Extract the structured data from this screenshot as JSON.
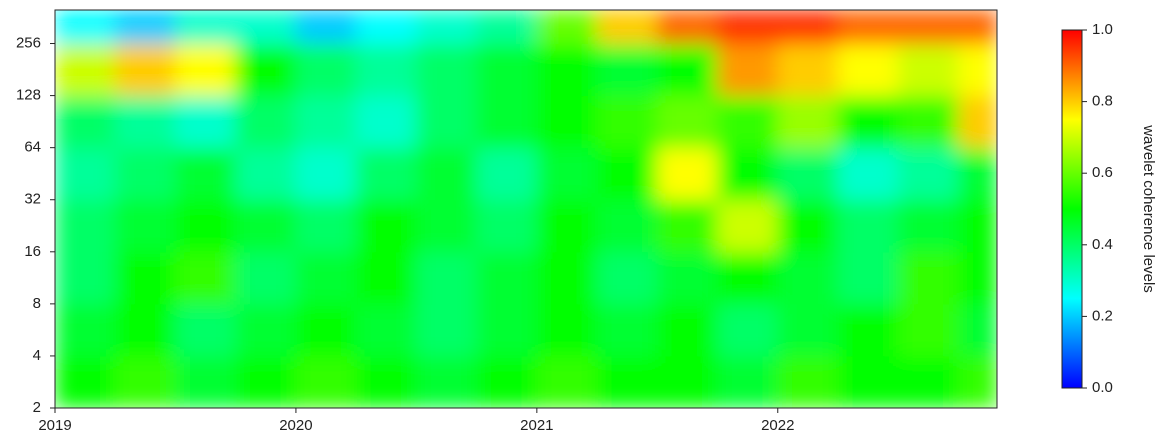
{
  "chart_data": {
    "type": "heatmap",
    "colorbar_label": "wavelet coherence levels",
    "log_y": true,
    "colorscale": [
      "#0000ff",
      "#00ffff",
      "#00ff00",
      "#ffff00",
      "#ff0000"
    ],
    "xlim": [
      2019,
      2022.91
    ],
    "ylim": [
      2,
      400
    ],
    "xticks": [
      2019,
      2020,
      2021,
      2022
    ],
    "yticks": [
      2,
      4,
      8,
      16,
      32,
      64,
      128,
      256
    ],
    "colorbar_lim": [
      0,
      1
    ],
    "colorbar_ticks": [
      {
        "value": 0,
        "label": "0.0"
      },
      0.2,
      0.4,
      0.6,
      0.8,
      {
        "value": 1,
        "label": "1.0"
      }
    ],
    "bins_x": [
      2019,
      2019.25,
      2019.5,
      2019.75,
      2020,
      2020.25,
      2020.5,
      2020.75,
      2021,
      2021.25,
      2021.5,
      2021.75,
      2022,
      2022.25,
      2022.5,
      2022.75,
      2022.91
    ],
    "bins_y": [
      2,
      4,
      8,
      16,
      32,
      64,
      128,
      256,
      400
    ],
    "z": [
      [
        0.5,
        0.55,
        0.45,
        0.5,
        0.55,
        0.5,
        0.45,
        0.5,
        0.55,
        0.5,
        0.5,
        0.45,
        0.55,
        0.5,
        0.5,
        0.55
      ],
      [
        0.45,
        0.5,
        0.4,
        0.45,
        0.5,
        0.45,
        0.4,
        0.45,
        0.5,
        0.45,
        0.5,
        0.4,
        0.45,
        0.5,
        0.55,
        0.45
      ],
      [
        0.4,
        0.5,
        0.55,
        0.4,
        0.45,
        0.5,
        0.4,
        0.45,
        0.5,
        0.4,
        0.45,
        0.5,
        0.45,
        0.4,
        0.55,
        0.5
      ],
      [
        0.4,
        0.45,
        0.5,
        0.45,
        0.4,
        0.5,
        0.45,
        0.4,
        0.5,
        0.45,
        0.55,
        0.7,
        0.5,
        0.4,
        0.45,
        0.5
      ],
      [
        0.35,
        0.4,
        0.45,
        0.35,
        0.3,
        0.4,
        0.45,
        0.35,
        0.45,
        0.5,
        0.75,
        0.5,
        0.4,
        0.3,
        0.35,
        0.45
      ],
      [
        0.4,
        0.35,
        0.3,
        0.4,
        0.35,
        0.3,
        0.4,
        0.45,
        0.5,
        0.55,
        0.6,
        0.55,
        0.65,
        0.5,
        0.55,
        0.8
      ],
      [
        0.7,
        0.8,
        0.75,
        0.5,
        0.4,
        0.35,
        0.4,
        0.45,
        0.5,
        0.45,
        0.5,
        0.85,
        0.8,
        0.75,
        0.7,
        0.75
      ],
      [
        0.25,
        0.2,
        0.3,
        0.3,
        0.2,
        0.25,
        0.3,
        0.35,
        0.6,
        0.8,
        0.9,
        0.95,
        0.95,
        0.9,
        0.9,
        0.9
      ]
    ]
  }
}
